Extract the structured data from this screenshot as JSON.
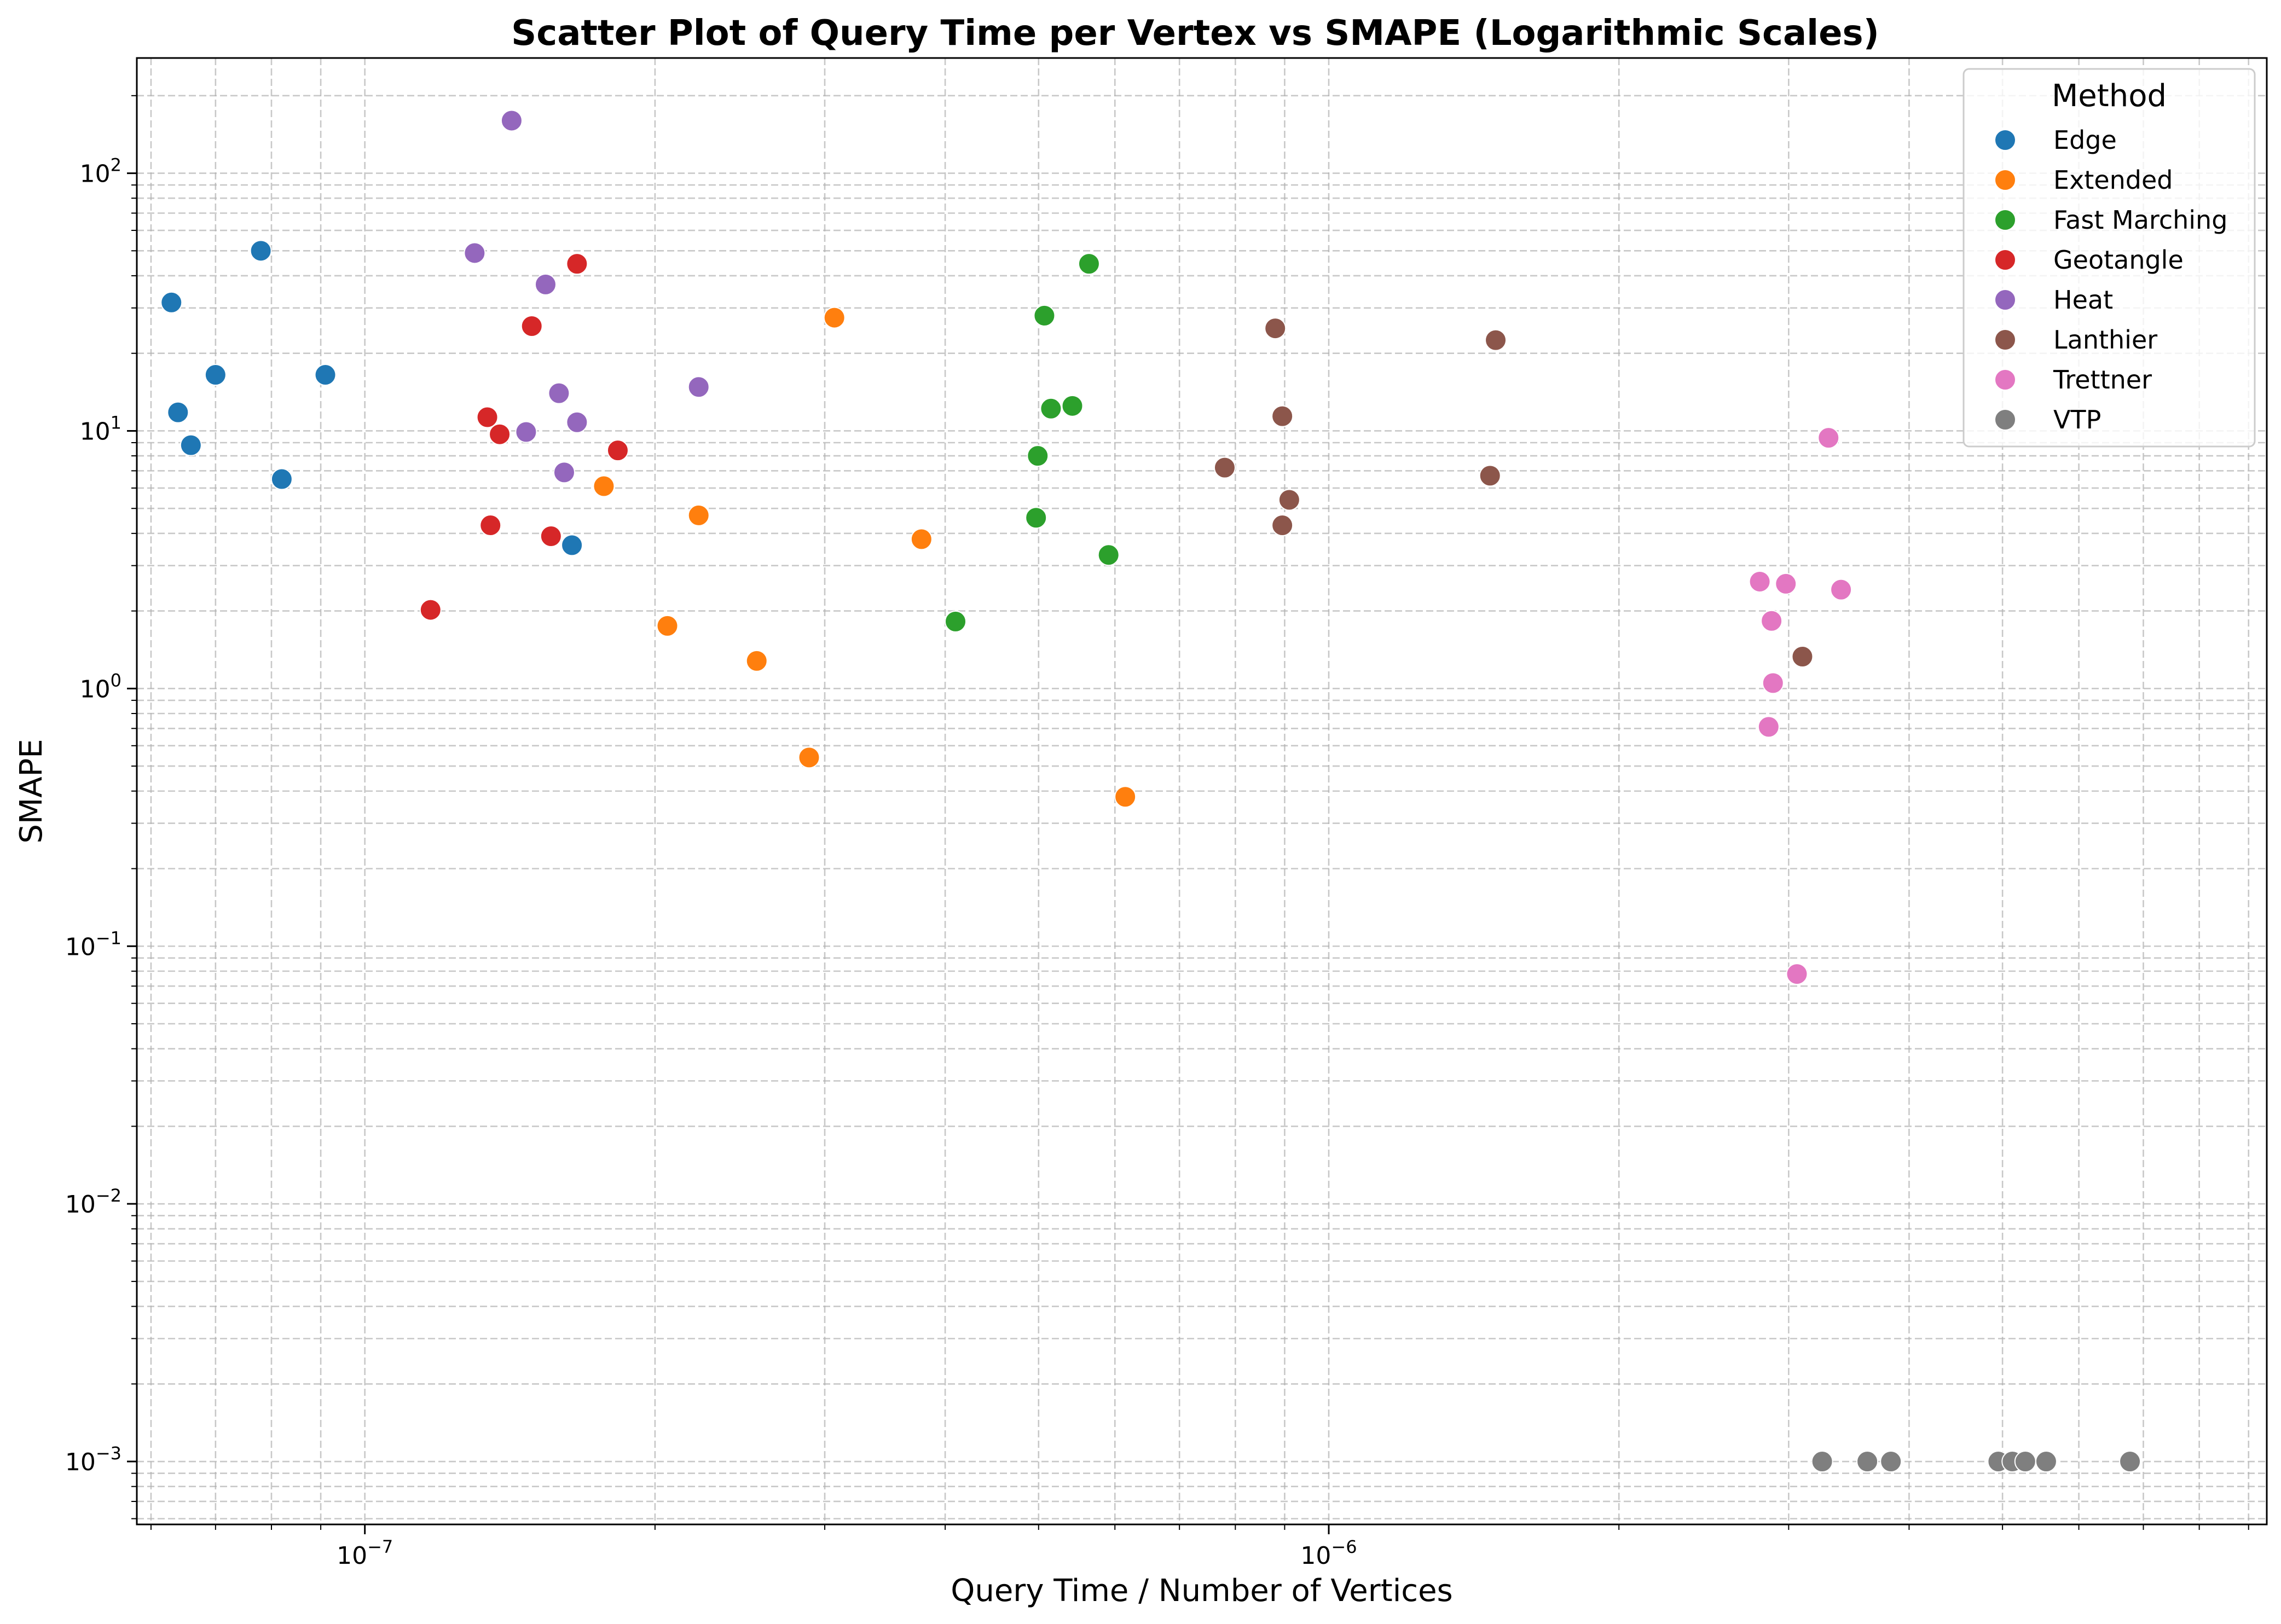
{
  "chart_data": {
    "type": "scatter",
    "title": "Scatter Plot of Query Time per Vertex vs SMAPE (Logarithmic Scales)",
    "xlabel": "Query Time / Number of Vertices",
    "ylabel": "SMAPE",
    "xscale": "log",
    "yscale": "log",
    "xlim": [
      5.8e-08,
      9.4e-06
    ],
    "ylim": [
      0.00057,
      280
    ],
    "grid": true,
    "legend": {
      "title": "Method",
      "placement": "top-right"
    },
    "x_ticks": [
      {
        "value": 1e-07,
        "base": "10",
        "exp": "−7"
      },
      {
        "value": 1e-06,
        "base": "10",
        "exp": "−6"
      }
    ],
    "y_ticks": [
      {
        "value": 100,
        "base": "10",
        "exp": "2"
      },
      {
        "value": 10,
        "base": "10",
        "exp": "1"
      },
      {
        "value": 1,
        "base": "10",
        "exp": "0"
      },
      {
        "value": 0.1,
        "base": "10",
        "exp": "−1"
      },
      {
        "value": 0.01,
        "base": "10",
        "exp": "−2"
      },
      {
        "value": 0.001,
        "base": "10",
        "exp": "−3"
      }
    ],
    "series": [
      {
        "name": "Edge",
        "color": "#1f77b4",
        "points": [
          {
            "x": 6.3e-08,
            "y": 31.5
          },
          {
            "x": 6.4e-08,
            "y": 11.8
          },
          {
            "x": 6.6e-08,
            "y": 8.8
          },
          {
            "x": 7e-08,
            "y": 16.5
          },
          {
            "x": 7.8e-08,
            "y": 50
          },
          {
            "x": 8.2e-08,
            "y": 6.5
          },
          {
            "x": 9.1e-08,
            "y": 16.5
          },
          {
            "x": 1.64e-07,
            "y": 3.6
          }
        ]
      },
      {
        "name": "Extended",
        "color": "#ff7f0e",
        "points": [
          {
            "x": 1.77e-07,
            "y": 6.1
          },
          {
            "x": 2.06e-07,
            "y": 1.75
          },
          {
            "x": 2.22e-07,
            "y": 4.7
          },
          {
            "x": 2.55e-07,
            "y": 1.28
          },
          {
            "x": 2.89e-07,
            "y": 0.54
          },
          {
            "x": 3.07e-07,
            "y": 27.5
          },
          {
            "x": 3.78e-07,
            "y": 3.8
          },
          {
            "x": 6.15e-07,
            "y": 0.38
          }
        ]
      },
      {
        "name": "Fast Marching",
        "color": "#2ca02c",
        "points": [
          {
            "x": 4.1e-07,
            "y": 1.82
          },
          {
            "x": 4.97e-07,
            "y": 4.6
          },
          {
            "x": 4.99e-07,
            "y": 8.0
          },
          {
            "x": 5.07e-07,
            "y": 28
          },
          {
            "x": 5.15e-07,
            "y": 12.2
          },
          {
            "x": 5.42e-07,
            "y": 12.5
          },
          {
            "x": 5.64e-07,
            "y": 44.5
          },
          {
            "x": 5.91e-07,
            "y": 3.3
          }
        ]
      },
      {
        "name": "Geotangle",
        "color": "#d62728",
        "points": [
          {
            "x": 1.17e-07,
            "y": 2.02
          },
          {
            "x": 1.34e-07,
            "y": 11.3
          },
          {
            "x": 1.35e-07,
            "y": 4.3
          },
          {
            "x": 1.38e-07,
            "y": 9.7
          },
          {
            "x": 1.49e-07,
            "y": 25.5
          },
          {
            "x": 1.56e-07,
            "y": 3.9
          },
          {
            "x": 1.66e-07,
            "y": 44.5
          },
          {
            "x": 1.83e-07,
            "y": 8.4
          }
        ]
      },
      {
        "name": "Heat",
        "color": "#9467bd",
        "points": [
          {
            "x": 1.3e-07,
            "y": 49
          },
          {
            "x": 1.42e-07,
            "y": 160
          },
          {
            "x": 1.47e-07,
            "y": 9.9
          },
          {
            "x": 1.54e-07,
            "y": 37
          },
          {
            "x": 1.59e-07,
            "y": 14
          },
          {
            "x": 1.61e-07,
            "y": 6.9
          },
          {
            "x": 1.66e-07,
            "y": 10.8
          },
          {
            "x": 2.22e-07,
            "y": 14.8
          }
        ]
      },
      {
        "name": "Lanthier",
        "color": "#8c564b",
        "points": [
          {
            "x": 7.8e-07,
            "y": 7.2
          },
          {
            "x": 8.8e-07,
            "y": 25
          },
          {
            "x": 8.95e-07,
            "y": 4.3
          },
          {
            "x": 8.95e-07,
            "y": 11.4
          },
          {
            "x": 9.1e-07,
            "y": 5.4
          },
          {
            "x": 1.47e-06,
            "y": 6.7
          },
          {
            "x": 1.49e-06,
            "y": 22.5
          },
          {
            "x": 3.1e-06,
            "y": 1.33
          }
        ]
      },
      {
        "name": "Trettner",
        "color": "#e377c2",
        "points": [
          {
            "x": 2.8e-06,
            "y": 2.6
          },
          {
            "x": 2.86e-06,
            "y": 0.71
          },
          {
            "x": 2.88e-06,
            "y": 1.83
          },
          {
            "x": 2.89e-06,
            "y": 1.05
          },
          {
            "x": 2.98e-06,
            "y": 2.55
          },
          {
            "x": 3.06e-06,
            "y": 0.078
          },
          {
            "x": 3.3e-06,
            "y": 9.4
          },
          {
            "x": 3.4e-06,
            "y": 2.42
          }
        ]
      },
      {
        "name": "VTP",
        "color": "#7f7f7f",
        "points": [
          {
            "x": 3.25e-06,
            "y": 0.001
          },
          {
            "x": 3.62e-06,
            "y": 0.001
          },
          {
            "x": 3.83e-06,
            "y": 0.001
          },
          {
            "x": 4.95e-06,
            "y": 0.001
          },
          {
            "x": 5.12e-06,
            "y": 0.001
          },
          {
            "x": 5.28e-06,
            "y": 0.001
          },
          {
            "x": 5.55e-06,
            "y": 0.001
          },
          {
            "x": 6.78e-06,
            "y": 0.001
          }
        ]
      }
    ]
  }
}
